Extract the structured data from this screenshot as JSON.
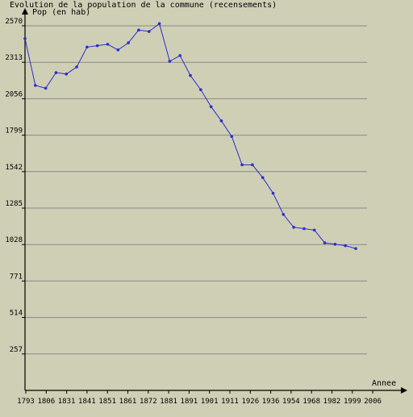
{
  "chart_data": {
    "type": "line",
    "title": "Evolution de la population de la commune (recensements)",
    "ylabel": "Pop (en hab)",
    "xlabel": "Annee",
    "ylim": [
      0,
      2570
    ],
    "yticks": [
      257,
      514,
      771,
      1028,
      1285,
      1542,
      1799,
      2056,
      2313,
      2570
    ],
    "xtick_labels": [
      "1793",
      "1806",
      "1831",
      "1841",
      "1851",
      "1861",
      "1872",
      "1881",
      "1891",
      "1901",
      "1911",
      "1926",
      "1936",
      "1954",
      "1968",
      "1982",
      "1999",
      "2006"
    ],
    "grid": "horizontal",
    "colors": {
      "background": "#cfcfb6",
      "line": "#2b2bd0",
      "grid": "#8a8a8a",
      "axis": "#000000"
    },
    "series": [
      {
        "values": [
          2480,
          2150,
          2130,
          2240,
          2230,
          2280,
          2420,
          2430,
          2440,
          2400,
          2450,
          2540,
          2530,
          2585,
          2320,
          2360,
          2220,
          2120,
          2000,
          1900,
          1790,
          1590,
          1590,
          1500,
          1390,
          1240,
          1150,
          1140,
          1130,
          1040,
          1030,
          1020,
          1000
        ]
      }
    ]
  }
}
